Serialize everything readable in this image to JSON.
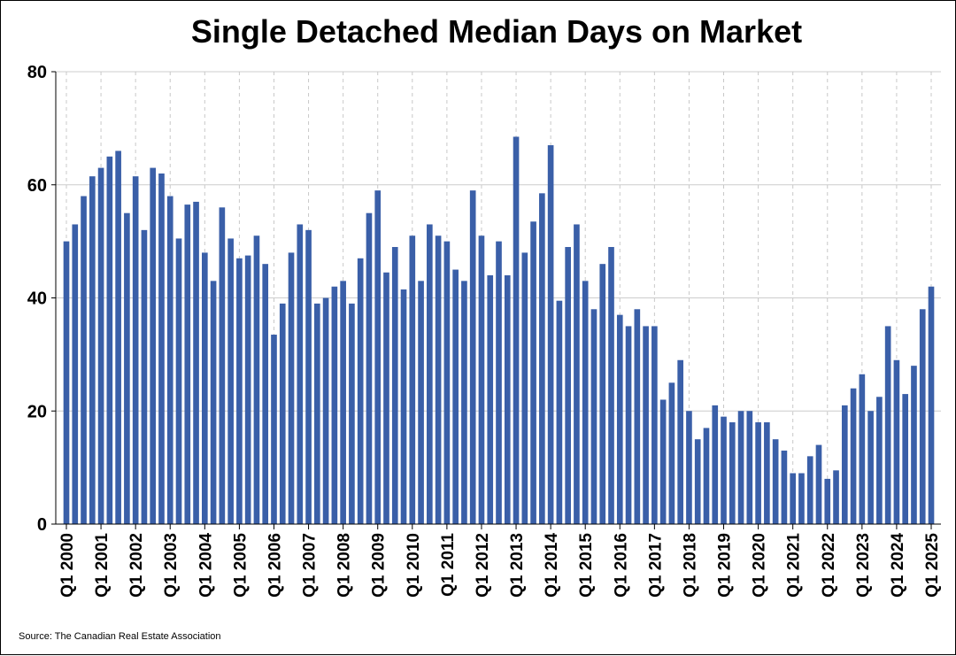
{
  "chart_data": {
    "type": "bar",
    "title": "Single Detached Median Days on Market",
    "source": "Source: The Canadian Real Estate Association",
    "xlabel": "",
    "ylabel": "",
    "ylim": [
      0,
      80
    ],
    "yticks": [
      0,
      20,
      40,
      60,
      80
    ],
    "grid": true,
    "bar_color": "#3A5FA8",
    "tick_labels": [
      "Q1 2000",
      "Q1 2001",
      "Q1 2002",
      "Q1 2003",
      "Q1 2004",
      "Q1 2005",
      "Q1 2006",
      "Q1 2007",
      "Q1 2008",
      "Q1 2009",
      "Q1 2010",
      "Q1 2011",
      "Q1 2012",
      "Q1 2013",
      "Q1 2014",
      "Q1 2015",
      "Q1 2016",
      "Q1 2017",
      "Q1 2018",
      "Q1 2019",
      "Q1 2020",
      "Q1 2021",
      "Q1 2022",
      "Q1 2023",
      "Q1 2024",
      "Q1 2025"
    ],
    "categories": [
      "Q1 2000",
      "Q2 2000",
      "Q3 2000",
      "Q4 2000",
      "Q1 2001",
      "Q2 2001",
      "Q3 2001",
      "Q4 2001",
      "Q1 2002",
      "Q2 2002",
      "Q3 2002",
      "Q4 2002",
      "Q1 2003",
      "Q2 2003",
      "Q3 2003",
      "Q4 2003",
      "Q1 2004",
      "Q2 2004",
      "Q3 2004",
      "Q4 2004",
      "Q1 2005",
      "Q2 2005",
      "Q3 2005",
      "Q4 2005",
      "Q1 2006",
      "Q2 2006",
      "Q3 2006",
      "Q4 2006",
      "Q1 2007",
      "Q2 2007",
      "Q3 2007",
      "Q4 2007",
      "Q1 2008",
      "Q2 2008",
      "Q3 2008",
      "Q4 2008",
      "Q1 2009",
      "Q2 2009",
      "Q3 2009",
      "Q4 2009",
      "Q1 2010",
      "Q2 2010",
      "Q3 2010",
      "Q4 2010",
      "Q1 2011",
      "Q2 2011",
      "Q3 2011",
      "Q4 2011",
      "Q1 2012",
      "Q2 2012",
      "Q3 2012",
      "Q4 2012",
      "Q1 2013",
      "Q2 2013",
      "Q3 2013",
      "Q4 2013",
      "Q1 2014",
      "Q2 2014",
      "Q3 2014",
      "Q4 2014",
      "Q1 2015",
      "Q2 2015",
      "Q3 2015",
      "Q4 2015",
      "Q1 2016",
      "Q2 2016",
      "Q3 2016",
      "Q4 2016",
      "Q1 2017",
      "Q2 2017",
      "Q3 2017",
      "Q4 2017",
      "Q1 2018",
      "Q2 2018",
      "Q3 2018",
      "Q4 2018",
      "Q1 2019",
      "Q2 2019",
      "Q3 2019",
      "Q4 2019",
      "Q1 2020",
      "Q2 2020",
      "Q3 2020",
      "Q4 2020",
      "Q1 2021",
      "Q2 2021",
      "Q3 2021",
      "Q4 2021",
      "Q1 2022",
      "Q2 2022",
      "Q3 2022",
      "Q4 2022",
      "Q1 2023",
      "Q2 2023",
      "Q3 2023",
      "Q4 2023",
      "Q1 2024",
      "Q2 2024",
      "Q3 2024",
      "Q4 2024",
      "Q1 2025"
    ],
    "values": [
      50,
      53,
      58,
      61.5,
      63,
      65,
      66,
      55,
      61.5,
      52,
      63,
      62,
      58,
      50.5,
      56.5,
      57,
      48,
      43,
      56,
      50.5,
      47,
      47.5,
      51,
      46,
      33.5,
      39,
      48,
      53,
      52,
      39,
      40,
      42,
      43,
      39,
      47,
      55,
      59,
      44.5,
      49,
      41.5,
      51,
      43,
      53,
      51,
      50,
      45,
      43,
      59,
      51,
      44,
      50,
      44,
      68.5,
      48,
      53.5,
      58.5,
      67,
      39.5,
      49,
      53,
      43,
      38,
      46,
      49,
      37,
      35,
      38,
      35,
      35,
      22,
      25,
      29,
      20,
      15,
      17,
      21,
      19,
      18,
      20,
      20,
      18,
      18,
      15,
      13,
      9,
      9,
      12,
      14,
      8,
      9.5,
      21,
      24,
      26.5,
      20,
      22.5,
      35,
      29,
      23,
      28,
      38,
      42
    ]
  }
}
